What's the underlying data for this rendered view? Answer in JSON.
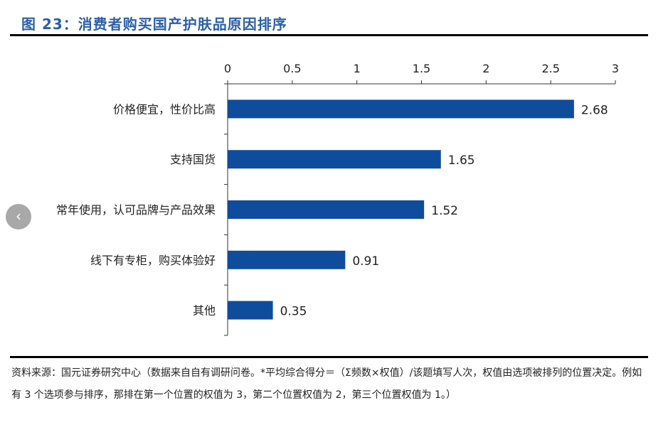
{
  "title": "图 23：消费者购买国产护肤品原因排序",
  "source": "资料来源：国元证券研究中心（数据来自自有调研问卷。*平均综合得分＝（Σ频数×权值）/该题填写人次，权值由选项被排列的位置决定。例如有 3 个选项参与排序，那排在第一个位置的权值为 3，第二个位置权值为 2，第三个位置权值为 1。）",
  "back_icon": "chevron-left-icon",
  "chart_data": {
    "type": "bar",
    "orientation": "horizontal",
    "categories": [
      "价格便宜，性价比高",
      "支持国货",
      "常年使用，认可品牌与产品效果",
      "线下有专柜，购买体验好",
      "其他"
    ],
    "values": [
      2.68,
      1.65,
      1.52,
      0.91,
      0.35
    ],
    "data_labels": [
      "2.68",
      "1.65",
      "1.52",
      "0.91",
      "0.35"
    ],
    "xlim": [
      0,
      3
    ],
    "x_ticks": [
      "0",
      "0.5",
      "1",
      "1.5",
      "2",
      "2.5",
      "3"
    ],
    "x_axis_position": "top",
    "grid": false,
    "bar_color": "#0f4c9c"
  }
}
